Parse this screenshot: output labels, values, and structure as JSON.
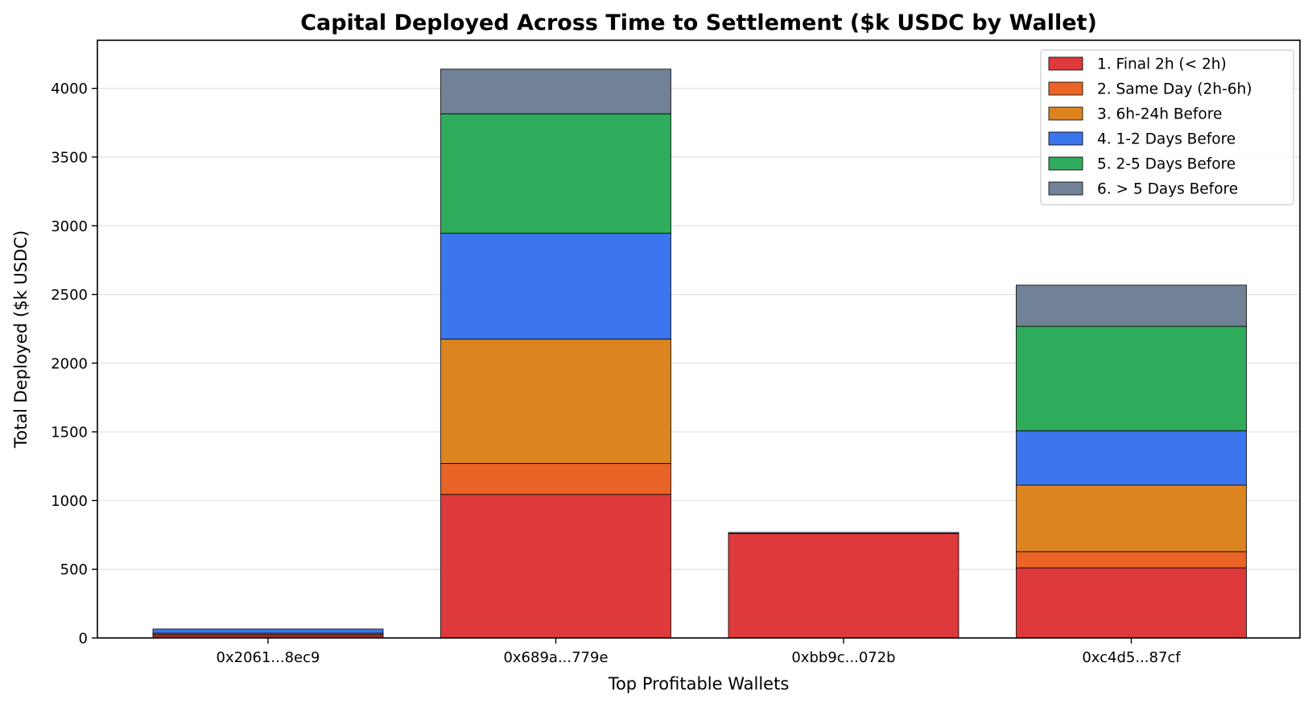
{
  "chart_data": {
    "type": "bar",
    "stacked": true,
    "title": "Capital Deployed Across Time to Settlement ($k USDC by Wallet)",
    "xlabel": "Top Profitable Wallets",
    "ylabel": "Total Deployed ($k USDC)",
    "categories": [
      "0x2061...8ec9",
      "0x689a...779e",
      "0xbb9c...072b",
      "0xc4d5...87cf"
    ],
    "ylim": [
      0,
      4350
    ],
    "yticks": [
      0,
      500,
      1000,
      1500,
      2000,
      2500,
      3000,
      3500,
      4000
    ],
    "grid": "y",
    "legend_position": "top-right",
    "series": [
      {
        "name": "1. Final 2h (< 2h)",
        "color": "#de3a3c",
        "values": [
          15,
          1045,
          760,
          510
        ]
      },
      {
        "name": "2. Same Day (2h-6h)",
        "color": "#ea6428",
        "values": [
          12,
          225,
          0,
          118
        ]
      },
      {
        "name": "3. 6h-24h Before",
        "color": "#dc8420",
        "values": [
          8,
          905,
          0,
          485
        ]
      },
      {
        "name": "4. 1-2 Days Before",
        "color": "#3b76ee",
        "values": [
          30,
          770,
          0,
          395
        ]
      },
      {
        "name": "5. 2-5 Days Before",
        "color": "#2eac5c",
        "values": [
          0,
          870,
          0,
          760
        ]
      },
      {
        "name": "6. > 5 Days Before",
        "color": "#718196",
        "values": [
          0,
          325,
          8,
          300
        ]
      }
    ]
  }
}
